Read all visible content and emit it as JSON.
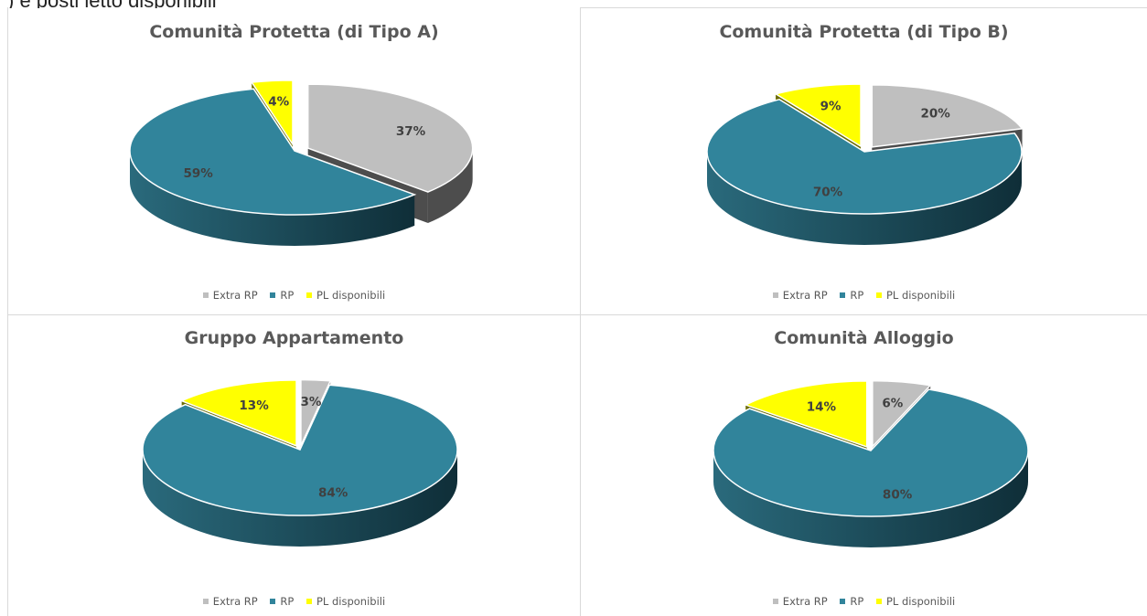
{
  "top_text": ") e posti letto disponibili",
  "colors": {
    "extra_rp": "#bfbfbf",
    "rp": "#31849b",
    "pl_disponibili": "#ffff00"
  },
  "legend_labels": [
    "Extra RP",
    "RP",
    "PL disponibili"
  ],
  "chart_data": [
    {
      "type": "pie",
      "title": "Comunità Protetta (di Tipo A)",
      "categories": [
        "Extra RP",
        "RP",
        "PL disponibili"
      ],
      "values": [
        37,
        59,
        4
      ],
      "labels": [
        "37%",
        "59%",
        "4%"
      ],
      "exploded": [
        "Extra RP",
        "PL disponibili"
      ],
      "legend": "bottom"
    },
    {
      "type": "pie",
      "title": "Comunità Protetta (di Tipo B)",
      "categories": [
        "Extra RP",
        "RP",
        "PL disponibili"
      ],
      "values": [
        20,
        70,
        9
      ],
      "labels": [
        "20%",
        "70%",
        "9%"
      ],
      "exploded": [
        "Extra RP",
        "PL disponibili"
      ],
      "legend": "bottom"
    },
    {
      "type": "pie",
      "title": "Gruppo Appartamento",
      "categories": [
        "Extra RP",
        "RP",
        "PL disponibili"
      ],
      "values": [
        3,
        84,
        13
      ],
      "labels": [
        "3%",
        "84%",
        "13%"
      ],
      "exploded": [
        "Extra RP",
        "PL disponibili"
      ],
      "legend": "bottom"
    },
    {
      "type": "pie",
      "title": "Comunità Alloggio",
      "categories": [
        "Extra RP",
        "RP",
        "PL disponibili"
      ],
      "values": [
        6,
        80,
        14
      ],
      "labels": [
        "6%",
        "80%",
        "14%"
      ],
      "exploded": [
        "Extra RP",
        "PL disponibili"
      ],
      "legend": "bottom"
    }
  ]
}
